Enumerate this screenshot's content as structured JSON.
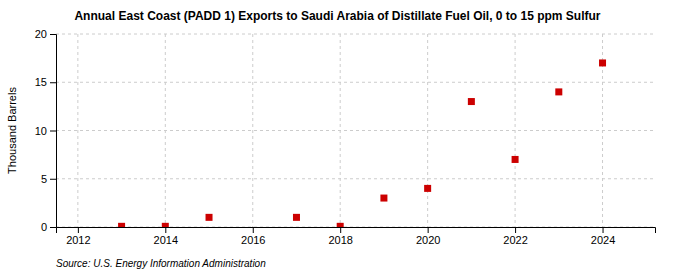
{
  "chart_data": {
    "type": "scatter",
    "title": "Annual East Coast (PADD 1) Exports to Saudi Arabia of Distillate Fuel Oil, 0 to 15 ppm Sulfur",
    "ylabel": "Thousand Barrels",
    "source": "Source: U.S. Energy Information Administration",
    "x": [
      2013,
      2014,
      2015,
      2017,
      2018,
      2019,
      2020,
      2021,
      2022,
      2023,
      2024
    ],
    "values": [
      0.07,
      0.07,
      1.0,
      1.0,
      0.07,
      3.0,
      4.0,
      13.0,
      7.0,
      14.0,
      17.0
    ],
    "color": "#cc0000",
    "marker": "square",
    "xlim": [
      2011.5,
      2025.2
    ],
    "ylim": [
      0,
      20
    ],
    "xticks": [
      2012,
      2014,
      2016,
      2018,
      2020,
      2022,
      2024
    ],
    "yticks": [
      0,
      5,
      10,
      15,
      20
    ],
    "grid": true
  }
}
